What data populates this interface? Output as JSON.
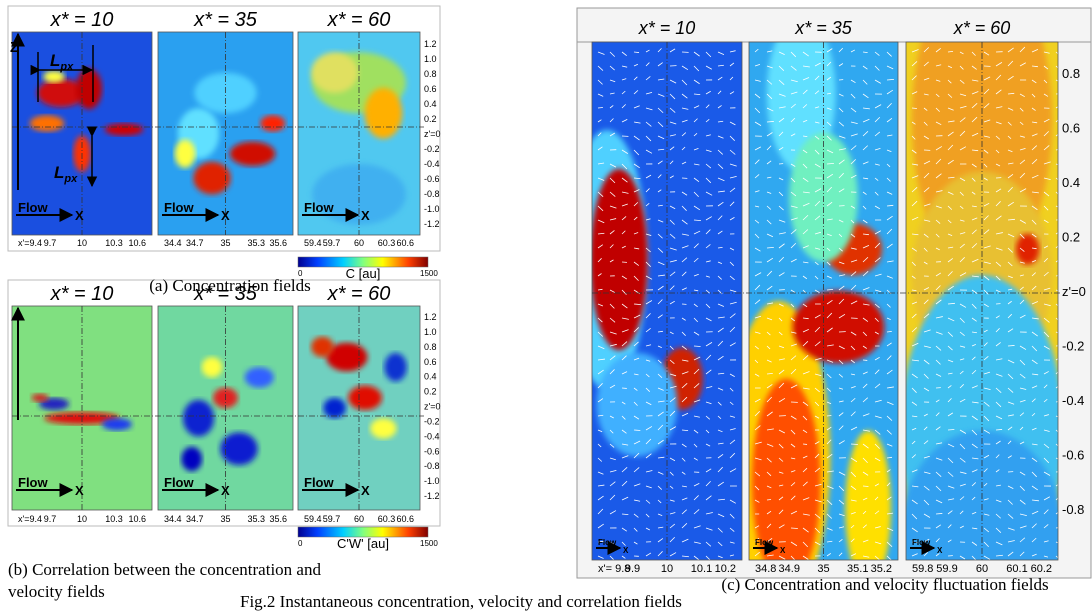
{
  "panel_a": {
    "titles": [
      "x* = 10",
      "x* = 35",
      "x* = 60"
    ],
    "z_ticks": [
      "1.2",
      "1.0",
      "0.8",
      "0.6",
      "0.4",
      "0.2",
      "z'=0",
      "-0.2",
      "-0.4",
      "-0.6",
      "-0.8",
      "-1.0",
      "-1.2"
    ],
    "x_ticks": [
      [
        "x'=9.4",
        "9.7",
        "10",
        "10.3",
        "10.6"
      ],
      [
        "34.4",
        "34.7",
        "35",
        "35.3",
        "35.6"
      ],
      [
        "59.4",
        "59.7",
        "60",
        "60.3",
        "60.6"
      ]
    ],
    "flow_label": "Flow",
    "x_axis": "X",
    "z_axis": "Z",
    "length_label": "L",
    "length_sub": "px",
    "colorbar": {
      "min": "0",
      "label": "C [au]",
      "max": "1500"
    },
    "caption": [
      "(a) Concentration fields"
    ]
  },
  "panel_b": {
    "titles": [
      "x* = 10",
      "x* = 35",
      "x* = 60"
    ],
    "z_ticks": [
      "1.2",
      "1.0",
      "0.8",
      "0.6",
      "0.4",
      "0.2",
      "z'=0",
      "-0.2",
      "-0.4",
      "-0.6",
      "-0.8",
      "-1.0",
      "-1.2"
    ],
    "x_ticks": [
      [
        "x'=9.4",
        "9.7",
        "10",
        "10.3",
        "10.6"
      ],
      [
        "34.4",
        "34.7",
        "35",
        "35.3",
        "35.6"
      ],
      [
        "59.4",
        "59.7",
        "60",
        "60.3",
        "60.6"
      ]
    ],
    "flow_label": "Flow",
    "x_axis": "X",
    "colorbar": {
      "min": "0",
      "label": "C'W' [au]",
      "max": "1500"
    },
    "caption": [
      "(b) Correlation between the concentration and",
      "velocity fields"
    ]
  },
  "panel_c": {
    "titles": [
      "x* = 10",
      "x* = 35",
      "x* = 60"
    ],
    "z_ticks": [
      "0.8",
      "0.6",
      "0.4",
      "0.2",
      "z'=0",
      "-0.2",
      "-0.4",
      "-0.6",
      "-0.8"
    ],
    "x_ticks": [
      [
        "x'= 9.8",
        "9.9",
        "10",
        "10.1",
        "10.2"
      ],
      [
        "34.8",
        "34.9",
        "35",
        "35.1",
        "35.2"
      ],
      [
        "59.8",
        "59.9",
        "60",
        "60.1",
        "60.2"
      ]
    ],
    "flow_label": "Flow",
    "x_axis": "X",
    "caption": [
      "(c) Concentration and velocity fluctuation fields"
    ]
  },
  "figure_caption": "Fig.2  Instantaneous concentration, velocity and correlation fields"
}
